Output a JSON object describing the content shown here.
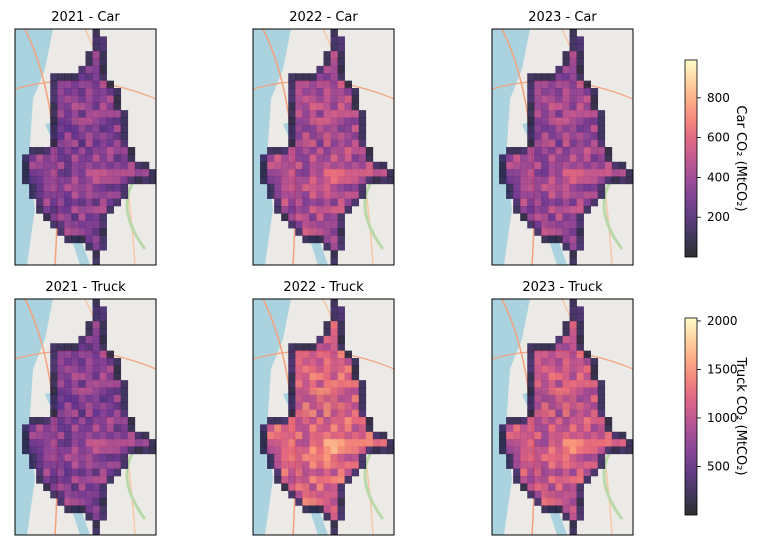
{
  "chart_data": {
    "type": "heatmap",
    "basemap": "street map with water (light blue) and land (light gray)",
    "colormap": "magma",
    "panels": [
      {
        "title": "2021 - Car",
        "row": "car",
        "year": "2021",
        "mode": "Car",
        "intensity": 0.34
      },
      {
        "title": "2022 - Car",
        "row": "car",
        "year": "2022",
        "mode": "Car",
        "intensity": 0.44
      },
      {
        "title": "2023 - Car",
        "row": "car",
        "year": "2023",
        "mode": "Car",
        "intensity": 0.4
      },
      {
        "title": "2021 - Truck",
        "row": "truck",
        "year": "2021",
        "mode": "Truck",
        "intensity": 0.34
      },
      {
        "title": "2022 - Truck",
        "row": "truck",
        "year": "2022",
        "mode": "Truck",
        "intensity": 0.58
      },
      {
        "title": "2023 - Truck",
        "row": "truck",
        "year": "2023",
        "mode": "Truck",
        "intensity": 0.52
      }
    ],
    "colorbars": [
      {
        "id": "car",
        "label": "Car CO₂ (MtCO₂)",
        "min": 0,
        "max": 990,
        "ticks": [
          200,
          400,
          600,
          800
        ]
      },
      {
        "id": "truck",
        "label": "Truck CO₂ (MtCO₂)",
        "min": 0,
        "max": 2030,
        "ticks": [
          500,
          1000,
          1500,
          2000
        ]
      }
    ]
  }
}
